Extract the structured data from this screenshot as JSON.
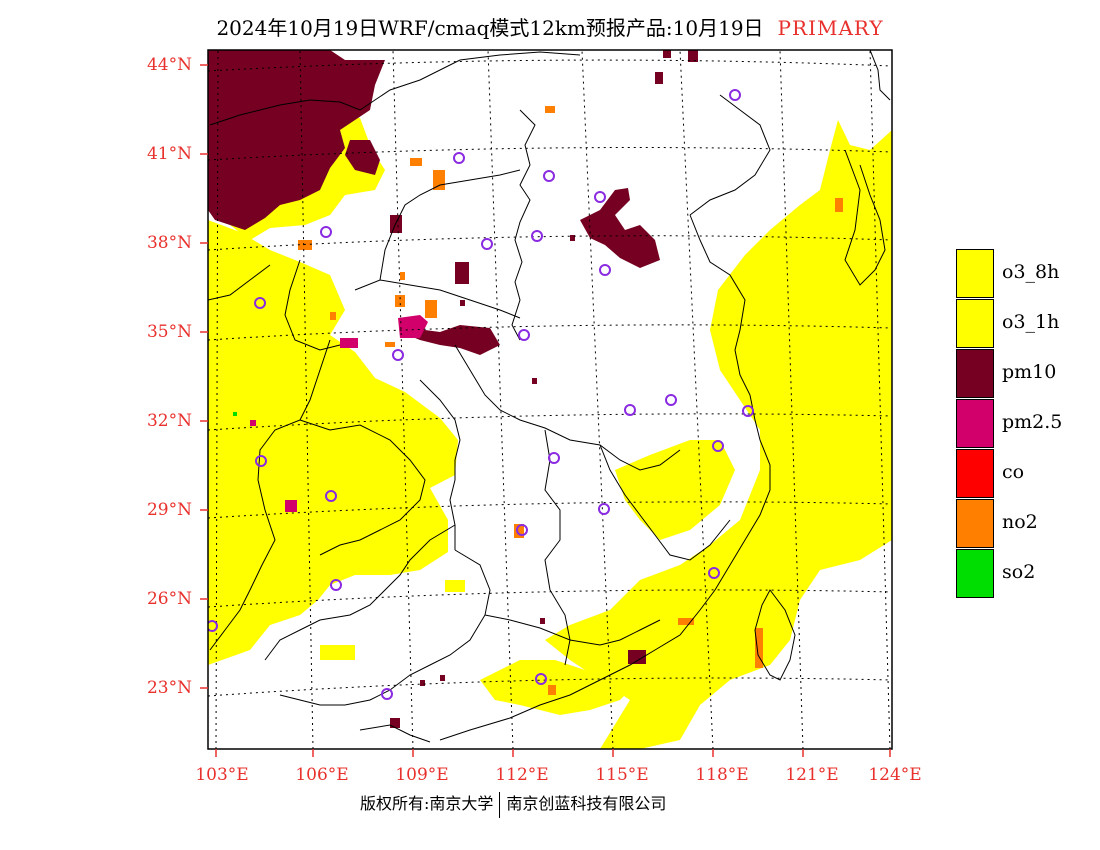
{
  "header": {
    "title": "2024年10月19日WRF/cmaq模式12km预报产品:10月19日",
    "tag": "PRIMARY"
  },
  "map": {
    "lat_labels": [
      "44°N",
      "41°N",
      "38°N",
      "35°N",
      "32°N",
      "29°N",
      "26°N",
      "23°N"
    ],
    "lon_labels": [
      "103°E",
      "106°E",
      "109°E",
      "112°E",
      "115°E",
      "118°E",
      "121°E",
      "124°E"
    ],
    "colors": {
      "o3": "#ffff00",
      "pm10": "#750021",
      "pm25": "#d1006b",
      "co": "#ff0000",
      "no2": "#ff7f00",
      "so2": "#00dd00",
      "station": "#8a2be2",
      "border": "#000000",
      "grid": "#000000"
    }
  },
  "legend": {
    "items": [
      {
        "label": "o3_8h",
        "color": "#ffff00"
      },
      {
        "label": "o3_1h",
        "color": "#ffff00"
      },
      {
        "label": "pm10",
        "color": "#750021"
      },
      {
        "label": "pm2.5",
        "color": "#d1006b"
      },
      {
        "label": "co",
        "color": "#ff0000"
      },
      {
        "label": "no2",
        "color": "#ff7f00"
      },
      {
        "label": "so2",
        "color": "#00dd00"
      }
    ]
  },
  "footer": {
    "left": "版权所有:南京大学",
    "right": "南京创蓝科技有限公司"
  }
}
